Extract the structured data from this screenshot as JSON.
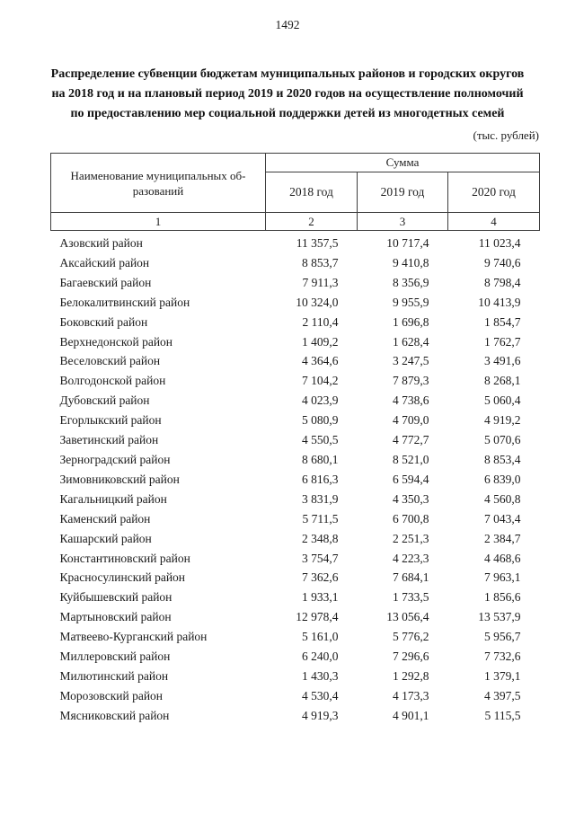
{
  "page": {
    "number": "1492",
    "title": "Распределение субвенции бюджетам муниципальных районов и городских округов на 2018 год и на плановый период 2019 и 2020 годов на осуществление полномочий по предоставлению мер социальной поддержки детей из многодетных семей",
    "unit_note": "(тыс. рублей)"
  },
  "table": {
    "name_header": "Наименование муниципальных об-\nразований",
    "group_header": "Сумма",
    "year_headers": [
      "2018 год",
      "2019 год",
      "2020 год"
    ],
    "column_numbers": [
      "1",
      "2",
      "3",
      "4"
    ],
    "rows": [
      [
        "Азовский район",
        "11 357,5",
        "10 717,4",
        "11 023,4"
      ],
      [
        "Аксайский район",
        "8 853,7",
        "9 410,8",
        "9 740,6"
      ],
      [
        "Багаевский район",
        "7 911,3",
        "8 356,9",
        "8 798,4"
      ],
      [
        "Белокалитвинский район",
        "10 324,0",
        "9 955,9",
        "10 413,9"
      ],
      [
        "Боковский район",
        "2 110,4",
        "1 696,8",
        "1 854,7"
      ],
      [
        "Верхнедонской район",
        "1 409,2",
        "1 628,4",
        "1 762,7"
      ],
      [
        "Веселовский район",
        "4 364,6",
        "3 247,5",
        "3 491,6"
      ],
      [
        "Волгодонской район",
        "7 104,2",
        "7 879,3",
        "8 268,1"
      ],
      [
        "Дубовский район",
        "4 023,9",
        "4 738,6",
        "5 060,4"
      ],
      [
        "Егорлыкский район",
        "5 080,9",
        "4 709,0",
        "4 919,2"
      ],
      [
        "Заветинский район",
        "4 550,5",
        "4 772,7",
        "5 070,6"
      ],
      [
        "Зерноградский район",
        "8 680,1",
        "8 521,0",
        "8 853,4"
      ],
      [
        "Зимовниковский район",
        "6 816,3",
        "6 594,4",
        "6 839,0"
      ],
      [
        "Кагальницкий район",
        "3 831,9",
        "4 350,3",
        "4 560,8"
      ],
      [
        "Каменский район",
        "5 711,5",
        "6 700,8",
        "7 043,4"
      ],
      [
        "Кашарский район",
        "2 348,8",
        "2 251,3",
        "2 384,7"
      ],
      [
        "Константиновский район",
        "3 754,7",
        "4 223,3",
        "4 468,6"
      ],
      [
        "Красносулинский район",
        "7 362,6",
        "7 684,1",
        "7 963,1"
      ],
      [
        "Куйбышевский район",
        "1 933,1",
        "1 733,5",
        "1 856,6"
      ],
      [
        "Мартыновский район",
        "12 978,4",
        "13 056,4",
        "13 537,9"
      ],
      [
        "Матвеево-Курганский район",
        "5 161,0",
        "5 776,2",
        "5 956,7"
      ],
      [
        "Миллеровский район",
        "6 240,0",
        "7 296,6",
        "7 732,6"
      ],
      [
        "Милютинский район",
        "1 430,3",
        "1 292,8",
        "1 379,1"
      ],
      [
        "Морозовский район",
        "4 530,4",
        "4 173,3",
        "4 397,5"
      ],
      [
        "Мясниковский район",
        "4 919,3",
        "4 901,1",
        "5 115,5"
      ]
    ]
  }
}
